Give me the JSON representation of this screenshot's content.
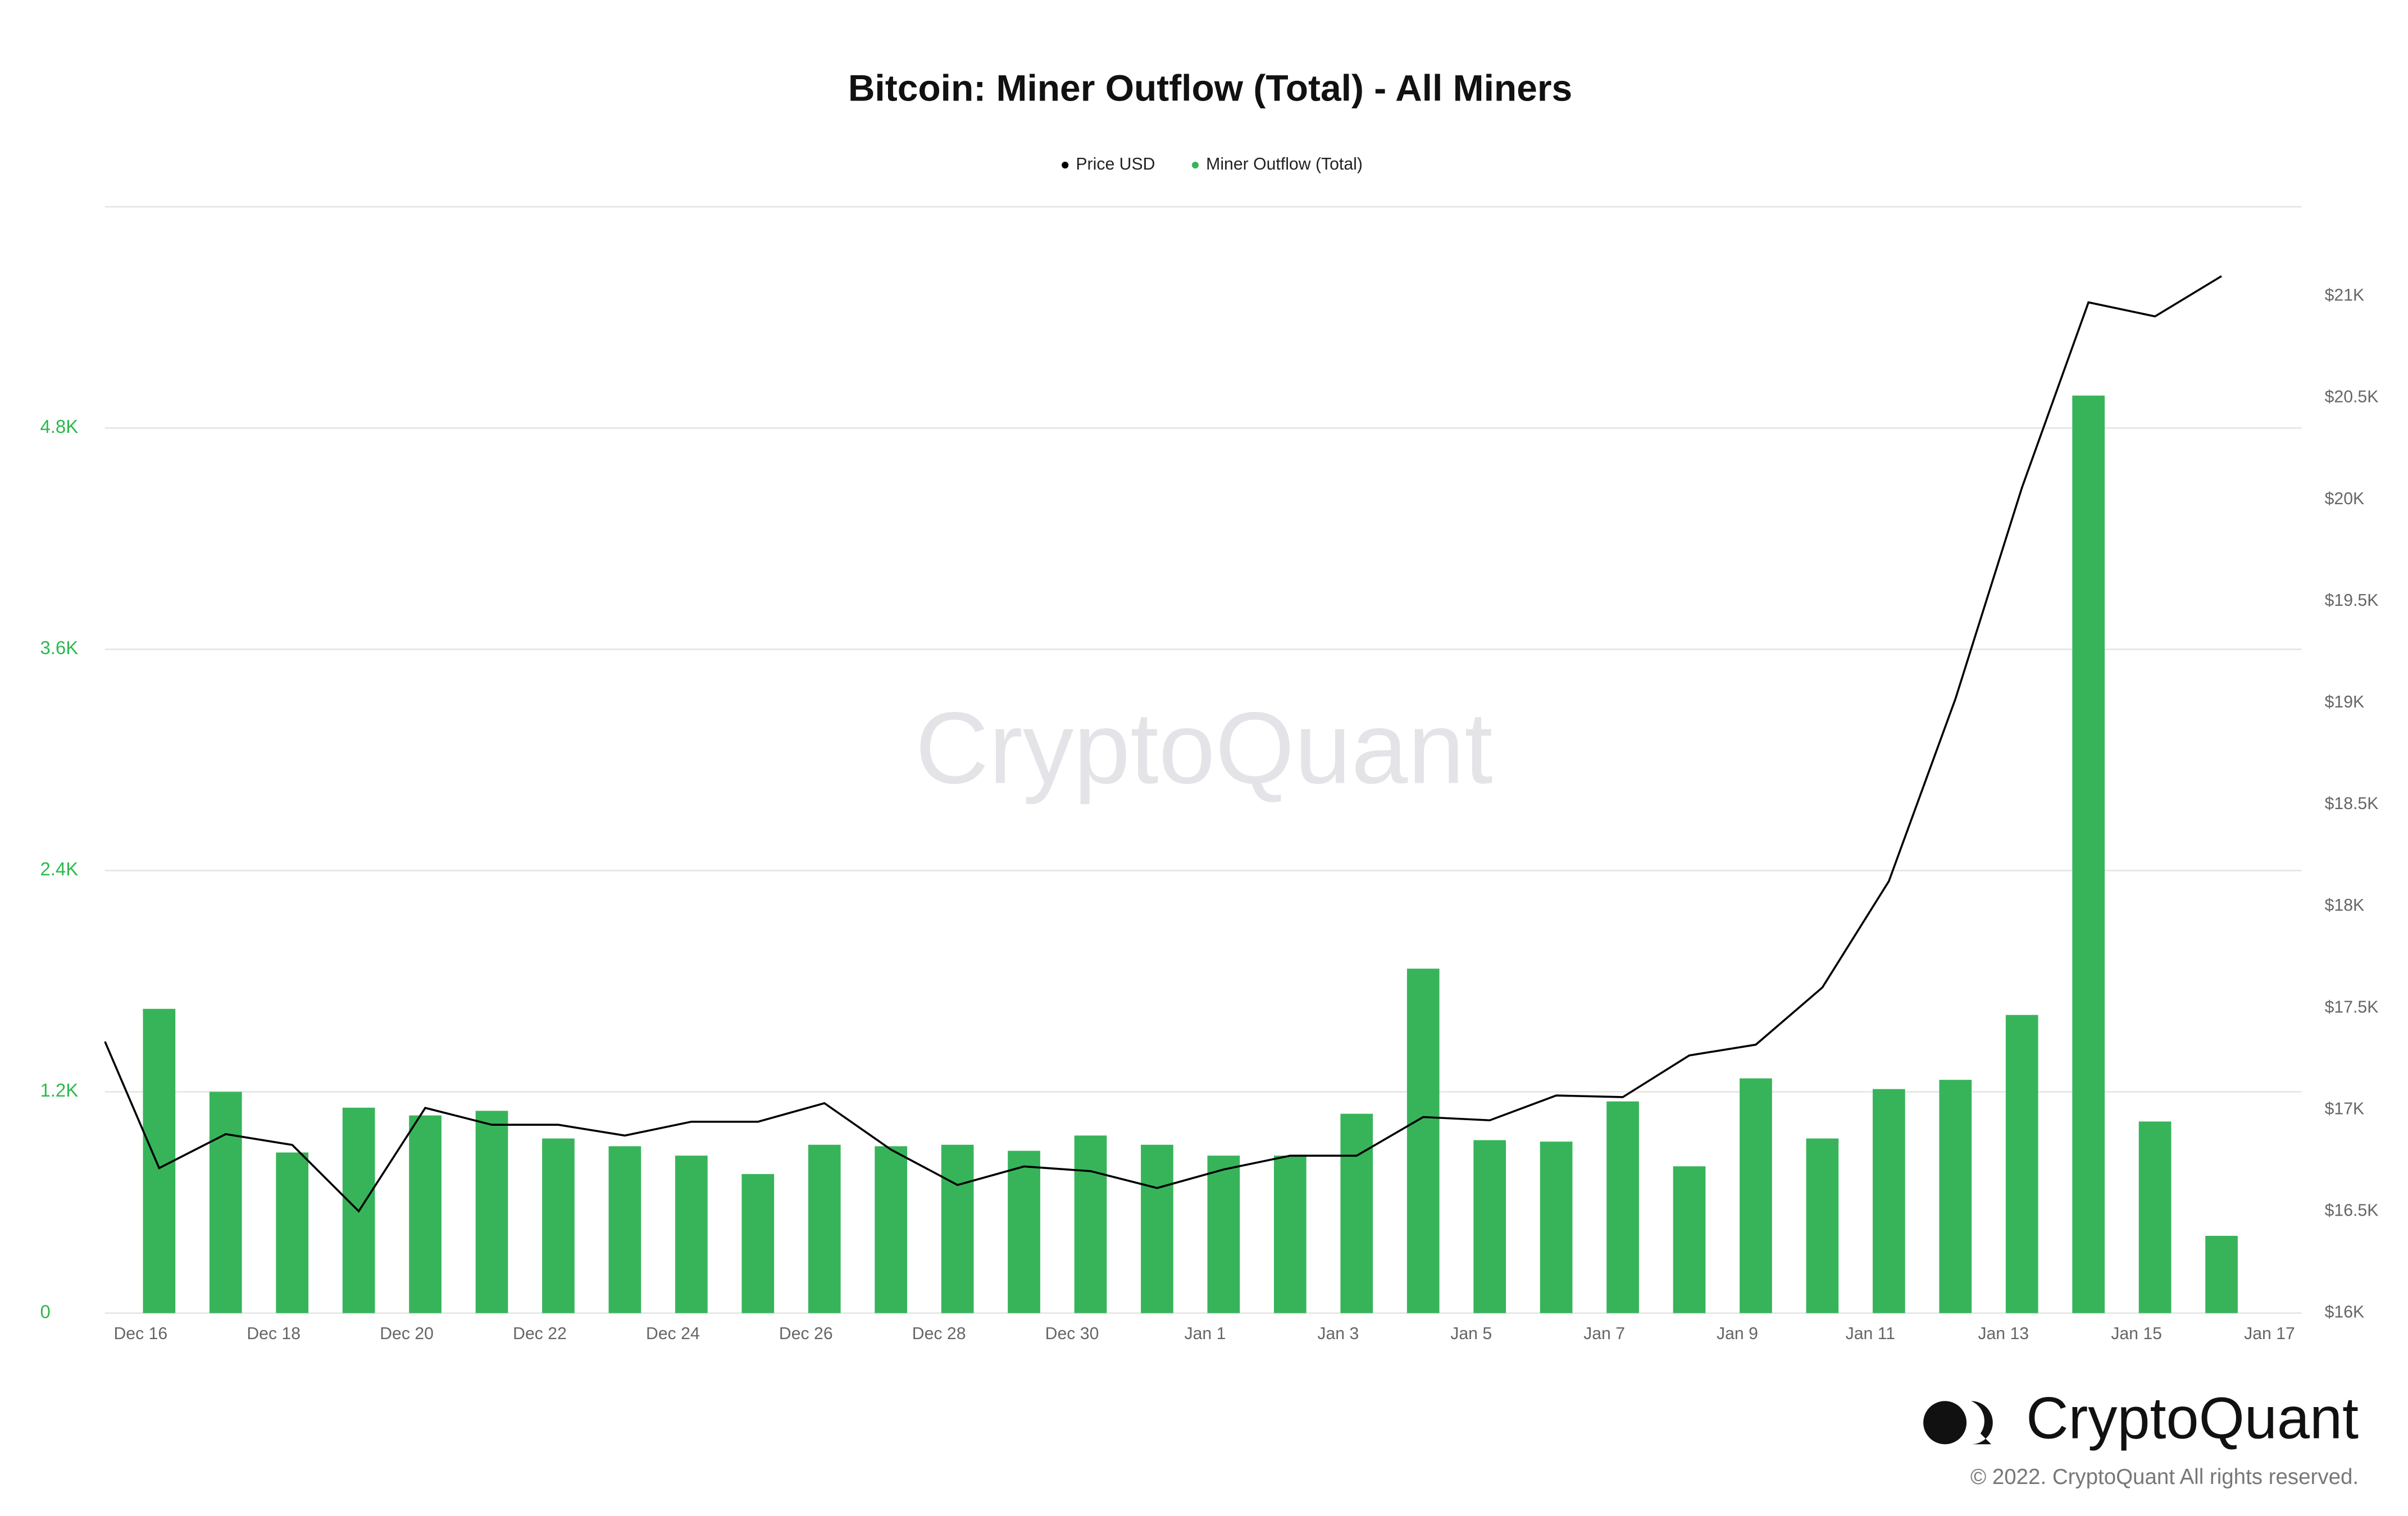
{
  "chart_data": {
    "type": "bar",
    "title": "Bitcoin: Miner Outflow (Total) - All Miners",
    "categories": [
      null,
      "Dec 16",
      null,
      "Dec 18",
      null,
      "Dec 20",
      null,
      "Dec 22",
      null,
      "Dec 24",
      null,
      "Dec 26",
      null,
      "Dec 28",
      null,
      "Dec 30",
      null,
      "Jan 1",
      null,
      "Jan 3",
      null,
      "Jan 5",
      null,
      "Jan 7",
      null,
      "Jan 9",
      null,
      "Jan 11",
      null,
      "Jan 13",
      null,
      "Jan 15",
      null,
      "Jan 17"
    ],
    "series": [
      {
        "name": "Price USD",
        "type": "line",
        "axis": "y2",
        "color": "#000000",
        "values": [
          17335,
          16713,
          16880,
          16827,
          16501,
          17009,
          16926,
          16926,
          16873,
          16941,
          16941,
          17032,
          16804,
          16630,
          16721,
          16698,
          16615,
          16706,
          16774,
          16774,
          16964,
          16948,
          17070,
          17062,
          17267,
          17320,
          17601,
          18124,
          19020,
          20059,
          20970,
          20901,
          21099,
          null
        ]
      },
      {
        "name": "Miner Outflow (Total)",
        "type": "bar",
        "color": "#37b45a",
        "values": [
          null,
          1650,
          1200,
          871,
          1114,
          1072,
          1097,
          947,
          905,
          854,
          754,
          913,
          905,
          913,
          880,
          963,
          913,
          854,
          854,
          1081,
          1868,
          938,
          930,
          1148,
          796,
          1273,
          947,
          1215,
          1265,
          1617,
          4976,
          1039,
          419,
          null
        ]
      }
    ],
    "ylim": [
      0,
      6000
    ],
    "yticks": [
      0,
      {
        "value": 1200,
        "label": "1.2K"
      },
      {
        "value": 2400,
        "label": "2.4K"
      },
      {
        "value": 3600,
        "label": "3.6K"
      },
      {
        "value": 4800,
        "label": "4.8K"
      }
    ],
    "y2lim": [
      16000,
      21440
    ],
    "y2ticks": [
      {
        "value": 16000,
        "label": "$16K"
      },
      {
        "value": 16500,
        "label": "$16.5K"
      },
      {
        "value": 17000,
        "label": "$17K"
      },
      {
        "value": 17500,
        "label": "$17.5K"
      },
      {
        "value": 18000,
        "label": "$18K"
      },
      {
        "value": 18500,
        "label": "$18.5K"
      },
      {
        "value": 19000,
        "label": "$19K"
      },
      {
        "value": 19500,
        "label": "$19.5K"
      },
      {
        "value": 20000,
        "label": "$20K"
      },
      {
        "value": 20500,
        "label": "$20.5K"
      },
      {
        "value": 21000,
        "label": "$21K"
      }
    ],
    "grid": true,
    "legend": "top",
    "watermark": "CryptoQuant",
    "brand": "CryptoQuant",
    "copyright": "© 2022. CryptoQuant All rights reserved."
  }
}
